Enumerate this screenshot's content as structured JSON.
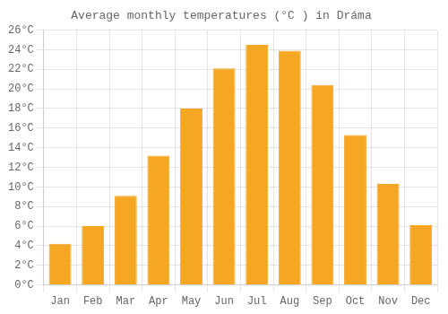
{
  "chart_data": {
    "type": "bar",
    "title": "Average monthly temperatures (°C ) in Dráma",
    "categories": [
      "Jan",
      "Feb",
      "Mar",
      "Apr",
      "May",
      "Jun",
      "Jul",
      "Aug",
      "Sep",
      "Oct",
      "Nov",
      "Dec"
    ],
    "values": [
      4.2,
      6.0,
      9.1,
      13.2,
      18.0,
      22.1,
      24.5,
      23.9,
      20.4,
      15.3,
      10.3,
      6.1
    ],
    "color": "#F5A623",
    "ylim": [
      0,
      26
    ],
    "yticks": [
      {
        "value": 0,
        "label": "0°C"
      },
      {
        "value": 2,
        "label": "2°C"
      },
      {
        "value": 4,
        "label": "4°C"
      },
      {
        "value": 6,
        "label": "6°C"
      },
      {
        "value": 8,
        "label": "8°C"
      },
      {
        "value": 10,
        "label": "10°C"
      },
      {
        "value": 12,
        "label": "12°C"
      },
      {
        "value": 14,
        "label": "14°C"
      },
      {
        "value": 16,
        "label": "16°C"
      },
      {
        "value": 18,
        "label": "18°C"
      },
      {
        "value": 20,
        "label": "20°C"
      },
      {
        "value": 22,
        "label": "22°C"
      },
      {
        "value": 24,
        "label": "24°C"
      },
      {
        "value": 26,
        "label": "26°C"
      }
    ],
    "grid": true
  }
}
